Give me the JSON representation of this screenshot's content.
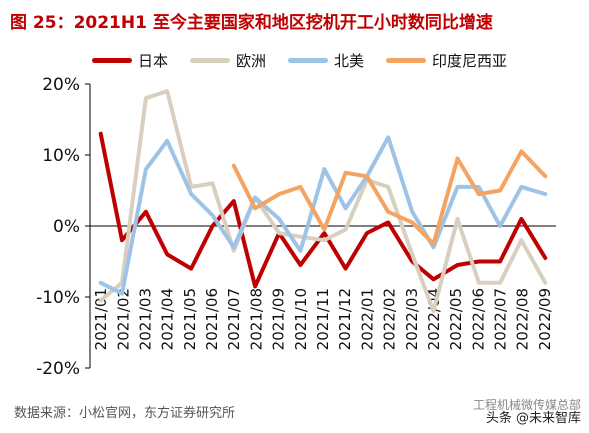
{
  "header": {
    "title": "图 25：2021H1 至今主要国家和地区挖机开工小时数同比增速"
  },
  "footer": {
    "source": "数据来源：小松官网，东方证券研究所"
  },
  "watermark": {
    "line1": "工程机械微传媒总部",
    "line2": "头条 @未来智库"
  },
  "chart_data": {
    "type": "line",
    "title": "",
    "xlabel": "",
    "ylabel": "",
    "ylim": [
      -20,
      20
    ],
    "yticks": [
      -20,
      -10,
      0,
      10,
      20
    ],
    "ytick_labels": [
      "-20%",
      "-10%",
      "0%",
      "10%",
      "20%"
    ],
    "grid": false,
    "legend_position": "top",
    "categories": [
      "2021/01",
      "2021/02",
      "2021/03",
      "2021/04",
      "2021/05",
      "2021/06",
      "2021/07",
      "2021/08",
      "2021/09",
      "2021/10",
      "2021/11",
      "2021/12",
      "2022/01",
      "2022/02",
      "2022/03",
      "2022/04",
      "2022/05",
      "2022/06",
      "2022/07",
      "2022/08",
      "2022/09"
    ],
    "series": [
      {
        "name": "日本",
        "color": "#c00000",
        "x": [
          2021.04,
          2021.12,
          2021.21,
          2021.29,
          2021.38,
          2021.46,
          2021.54,
          2021.62,
          2021.71,
          2021.79,
          2021.88,
          2021.96,
          2022.04,
          2022.12,
          2022.21,
          2022.29,
          2022.38,
          2022.46,
          2022.54,
          2022.62,
          2022.71
        ],
        "values": [
          13,
          -2,
          2,
          -4,
          -6,
          0,
          3.5,
          -8.5,
          -1,
          -5.5,
          -1,
          -6,
          -1,
          0.5,
          -5,
          -7.5,
          -5.5,
          -5,
          -5,
          1,
          -4.5
        ]
      },
      {
        "name": "欧洲",
        "color": "#d9cfbf",
        "x": [
          2021.04,
          2021.12,
          2021.21,
          2021.29,
          2021.38,
          2021.46,
          2021.54,
          2021.62,
          2021.71,
          2021.79,
          2021.88,
          2021.96,
          2022.04,
          2022.12,
          2022.21,
          2022.29,
          2022.38,
          2022.46,
          2022.54,
          2022.62,
          2022.71
        ],
        "values": [
          -10.5,
          -8,
          18,
          19,
          5.5,
          6,
          -3.5,
          4,
          -1,
          -1.5,
          -2,
          -0.5,
          6.5,
          5.5,
          -4,
          -12,
          1,
          -8,
          -8,
          -2,
          -8
        ]
      },
      {
        "name": "北美",
        "color": "#9dc3e6",
        "x": [
          2021.04,
          2021.12,
          2021.21,
          2021.29,
          2021.38,
          2021.46,
          2021.54,
          2021.62,
          2021.71,
          2021.79,
          2021.88,
          2021.96,
          2022.04,
          2022.12,
          2022.21,
          2022.29,
          2022.38,
          2022.46,
          2022.54,
          2022.62,
          2022.71
        ],
        "values": [
          -8,
          -9.5,
          8,
          12,
          4.5,
          1.5,
          -3,
          4,
          1,
          -3.5,
          8,
          2.5,
          7,
          12.5,
          2,
          -3,
          5.5,
          5.5,
          0,
          5.5,
          4.5
        ]
      },
      {
        "name": "印度尼西亚",
        "color": "#f4a460",
        "x": [
          2021.54,
          2021.62,
          2021.71,
          2021.79,
          2021.88,
          2021.96,
          2022.04,
          2022.12,
          2022.21,
          2022.29,
          2022.38,
          2022.46,
          2022.54,
          2022.62,
          2022.71
        ],
        "values": [
          8.5,
          2.5,
          4.5,
          5.5,
          -0.5,
          7.5,
          7,
          2,
          0.5,
          -2.5,
          9.5,
          4.5,
          5,
          10.5,
          7
        ]
      }
    ]
  }
}
